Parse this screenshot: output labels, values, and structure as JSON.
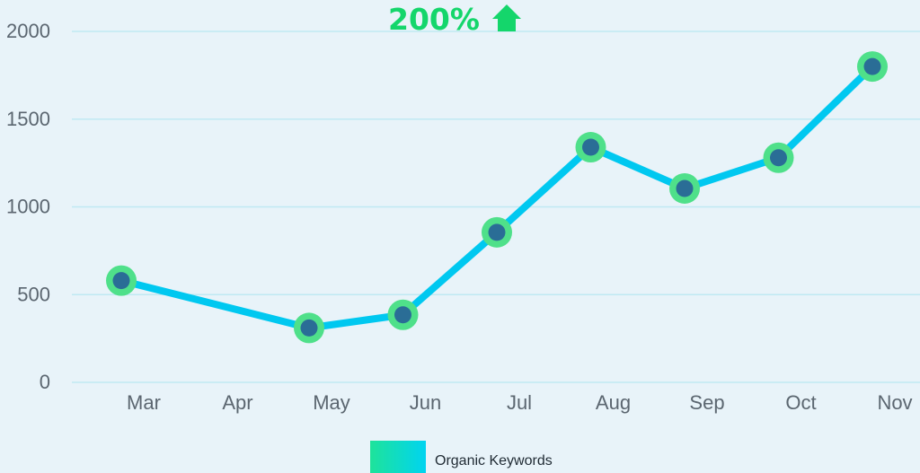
{
  "colors": {
    "background": "#e8f3f9",
    "gridline": "#bfe9f3",
    "line": "#00c8f0",
    "marker_ring": "#4fe08a",
    "marker_dot": "#2a6d96",
    "badge": "#14d66b",
    "tick_text": "#5b6670"
  },
  "growth_badge": {
    "text": "200%",
    "icon": "up-arrow-icon"
  },
  "chart_data": {
    "type": "line",
    "title": "",
    "xlabel": "",
    "ylabel": "",
    "categories": [
      "Mar",
      "Apr",
      "May",
      "Jun",
      "Jul",
      "Aug",
      "Sep",
      "Oct",
      "Nov"
    ],
    "ylim": [
      0,
      2000
    ],
    "yticks": [
      0,
      500,
      1000,
      1500,
      2000
    ],
    "grid": true,
    "legend_position": "bottom",
    "series": [
      {
        "name": "Organic Keywords",
        "points": [
          {
            "x": "Mar",
            "y": 580
          },
          {
            "x": "May",
            "y": 310
          },
          {
            "x": "Jun",
            "y": 385
          },
          {
            "x": "Jul",
            "y": 855
          },
          {
            "x": "Aug",
            "y": 1340
          },
          {
            "x": "Sep",
            "y": 1105
          },
          {
            "x": "Oct",
            "y": 1280
          },
          {
            "x": "Nov",
            "y": 1800
          }
        ]
      }
    ]
  }
}
